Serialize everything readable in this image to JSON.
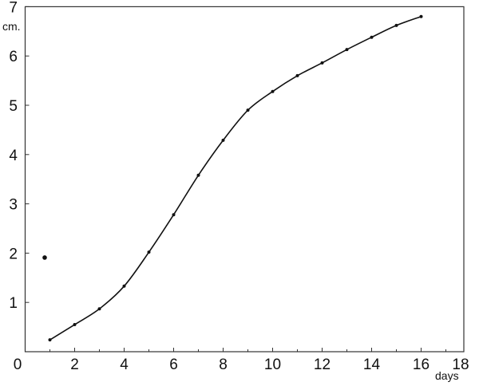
{
  "chart_data": {
    "type": "line",
    "title": "",
    "xlabel": "days",
    "ylabel": "cm.",
    "xlim": [
      0,
      18
    ],
    "ylim": [
      0,
      7
    ],
    "x_ticks": [
      0,
      2,
      4,
      6,
      8,
      10,
      12,
      14,
      16,
      18
    ],
    "y_ticks": [
      1,
      2,
      3,
      4,
      5,
      6,
      7
    ],
    "grid": false,
    "line_color": "#111111",
    "series": [
      {
        "x": [
          1,
          2,
          3,
          4,
          5,
          6,
          7,
          8,
          9,
          10,
          11,
          12,
          13,
          14,
          15,
          16
        ],
        "y": [
          0.24,
          0.55,
          0.87,
          1.33,
          2.02,
          2.78,
          3.58,
          4.29,
          4.9,
          5.28,
          5.6,
          5.86,
          6.13,
          6.38,
          6.62,
          6.8
        ]
      }
    ],
    "extra_points": [
      {
        "x": 0.79,
        "y": 1.91
      }
    ]
  }
}
